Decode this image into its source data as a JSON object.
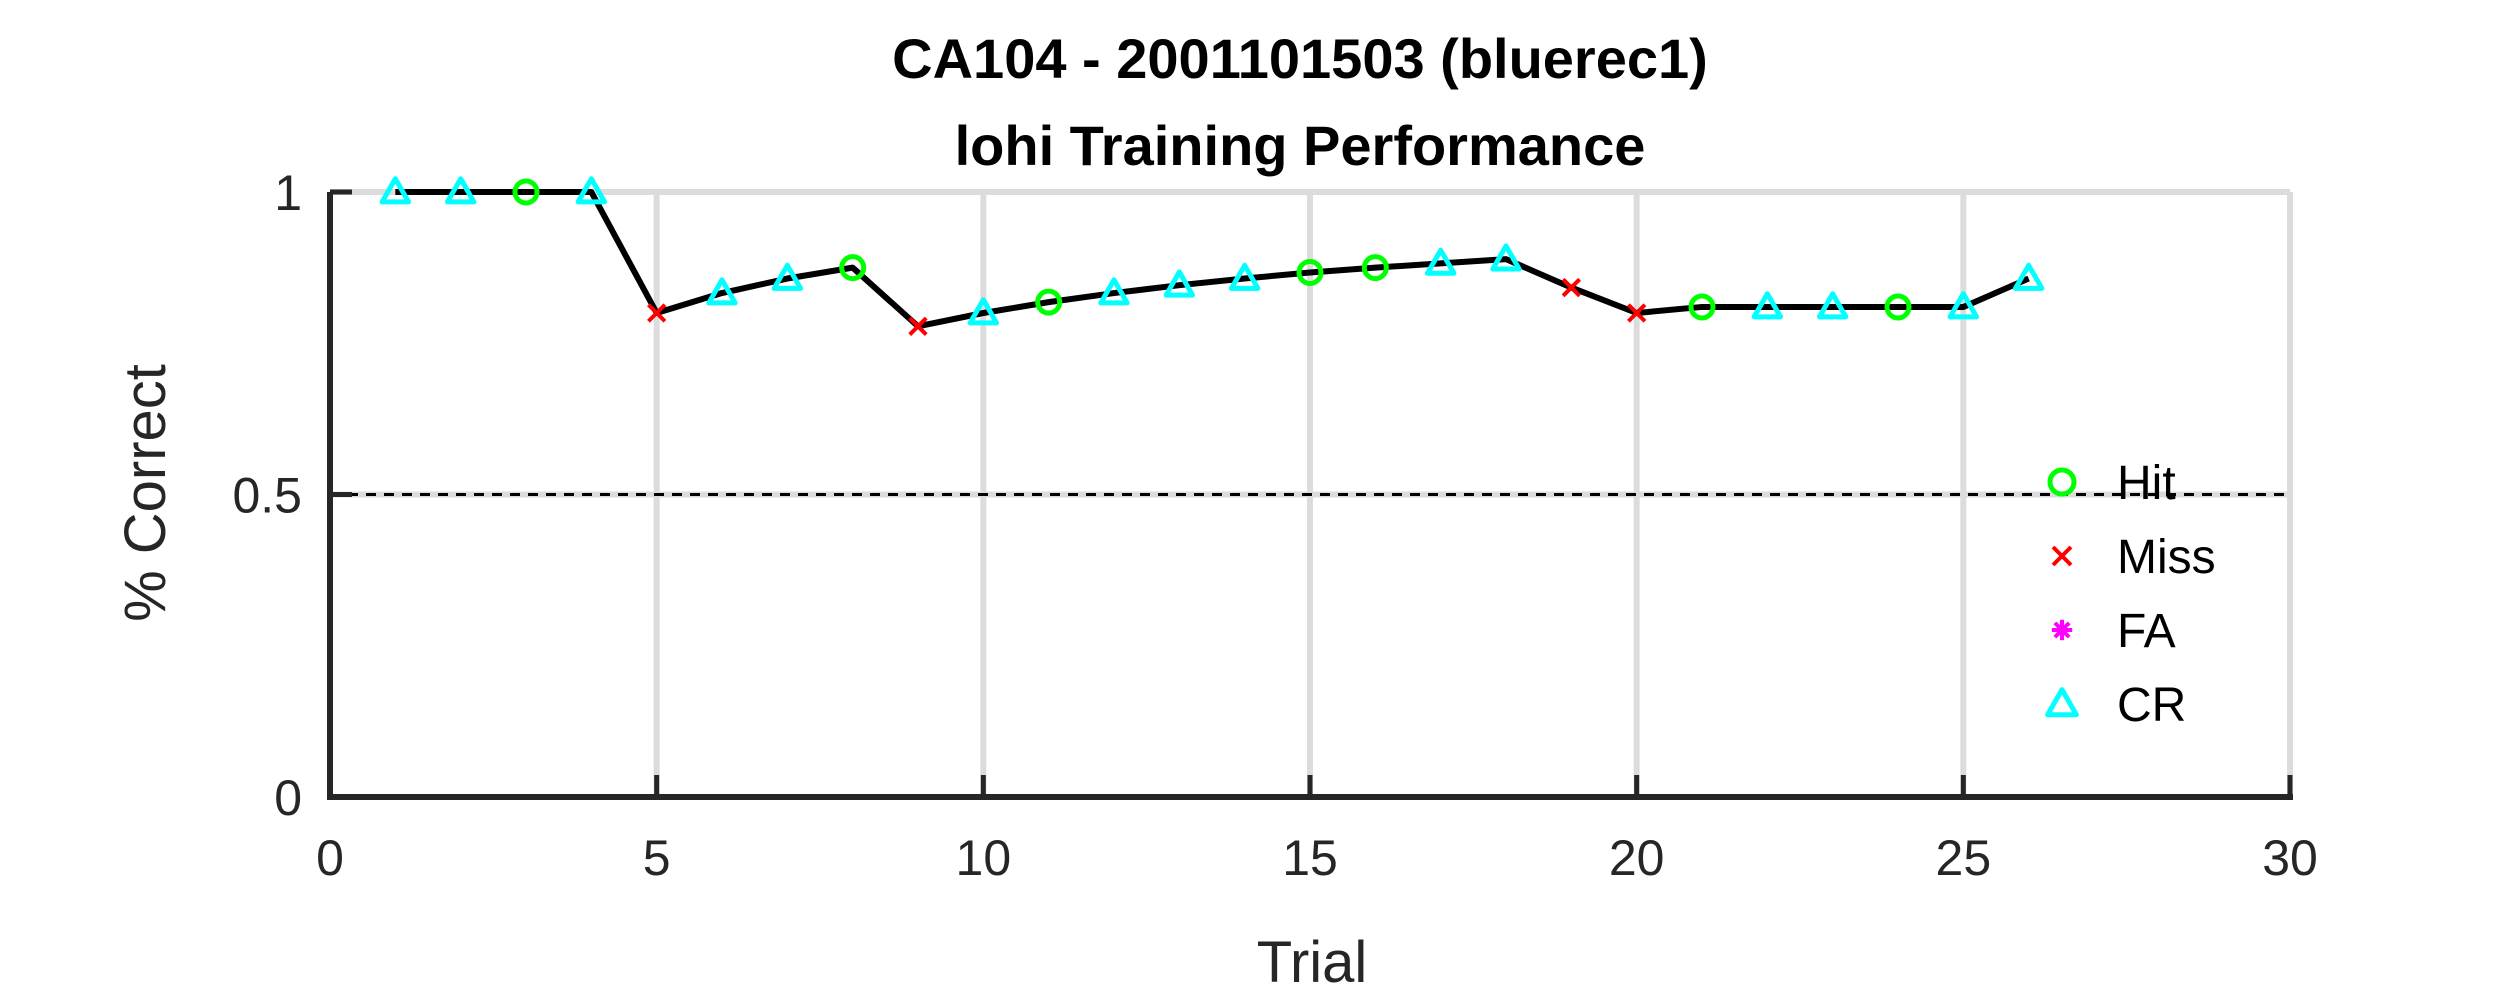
{
  "chart_data": {
    "type": "line",
    "title": "CA104 - 2001101503 (bluerec1)",
    "subtitle": "lohi Training Performance",
    "xlabel": "Trial",
    "ylabel": "% Correct",
    "xlim": [
      0,
      30
    ],
    "ylim": [
      0,
      1
    ],
    "x_ticks": [
      "0",
      "5",
      "10",
      "15",
      "20",
      "25",
      "30"
    ],
    "y_ticks": [
      "0",
      "0.5",
      "1"
    ],
    "grid": true,
    "reference_line": {
      "y": 0.5,
      "style": "dashed",
      "color": "#000000"
    },
    "line_color": "#000000",
    "legend_position": "right",
    "series": [
      {
        "name": "Hit",
        "marker": "circle",
        "color": "#00ff00"
      },
      {
        "name": "Miss",
        "marker": "x",
        "color": "#ff0000"
      },
      {
        "name": "FA",
        "marker": "asterisk",
        "color": "#ff00ff"
      },
      {
        "name": "CR",
        "marker": "triangle",
        "color": "#00ffff"
      }
    ],
    "points": [
      {
        "x": 1,
        "y": 1.0,
        "outcome": "CR"
      },
      {
        "x": 2,
        "y": 1.0,
        "outcome": "CR"
      },
      {
        "x": 3,
        "y": 1.0,
        "outcome": "Hit"
      },
      {
        "x": 4,
        "y": 1.0,
        "outcome": "CR"
      },
      {
        "x": 5,
        "y": 0.8,
        "outcome": "Miss"
      },
      {
        "x": 6,
        "y": 0.833,
        "outcome": "CR"
      },
      {
        "x": 7,
        "y": 0.857,
        "outcome": "CR"
      },
      {
        "x": 8,
        "y": 0.875,
        "outcome": "Hit"
      },
      {
        "x": 9,
        "y": 0.778,
        "outcome": "Miss"
      },
      {
        "x": 10,
        "y": 0.8,
        "outcome": "CR"
      },
      {
        "x": 11,
        "y": 0.818,
        "outcome": "Hit"
      },
      {
        "x": 12,
        "y": 0.833,
        "outcome": "CR"
      },
      {
        "x": 13,
        "y": 0.846,
        "outcome": "CR"
      },
      {
        "x": 14,
        "y": 0.857,
        "outcome": "CR"
      },
      {
        "x": 15,
        "y": 0.867,
        "outcome": "Hit"
      },
      {
        "x": 16,
        "y": 0.875,
        "outcome": "Hit"
      },
      {
        "x": 17,
        "y": 0.882,
        "outcome": "CR"
      },
      {
        "x": 18,
        "y": 0.889,
        "outcome": "CR"
      },
      {
        "x": 19,
        "y": 0.842,
        "outcome": "Miss"
      },
      {
        "x": 20,
        "y": 0.8,
        "outcome": "Miss"
      },
      {
        "x": 21,
        "y": 0.81,
        "outcome": "Hit"
      },
      {
        "x": 22,
        "y": 0.81,
        "outcome": "CR"
      },
      {
        "x": 23,
        "y": 0.81,
        "outcome": "CR"
      },
      {
        "x": 24,
        "y": 0.81,
        "outcome": "Hit"
      },
      {
        "x": 25,
        "y": 0.81,
        "outcome": "CR"
      },
      {
        "x": 26,
        "y": 0.857,
        "outcome": "CR"
      }
    ]
  }
}
